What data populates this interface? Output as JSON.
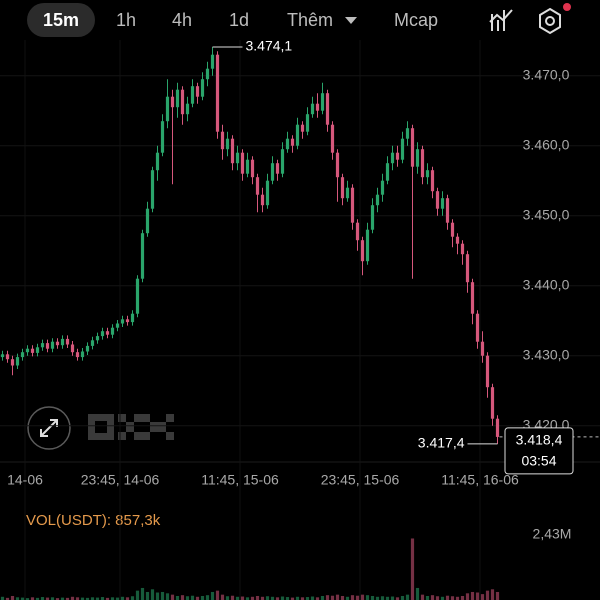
{
  "header": {
    "tabs": [
      "15m",
      "1h",
      "4h",
      "1d",
      "Thêm",
      "Mcap"
    ]
  },
  "chart_data": {
    "type": "candlestick",
    "up_color": "#2aa56b",
    "down_color": "#d6587c",
    "ylim": [
      3414.9,
      3475.1
    ],
    "yticks": [
      {
        "value": 3470,
        "label": "3.470,0"
      },
      {
        "value": 3460,
        "label": "3.460,0"
      },
      {
        "value": 3450,
        "label": "3.450,0"
      },
      {
        "value": 3440,
        "label": "3.440,0"
      },
      {
        "value": 3430,
        "label": "3.430,0"
      },
      {
        "value": 3420,
        "label": "3.420,0"
      }
    ],
    "xlim": [
      -0.5,
      119.5
    ],
    "xticks": [
      {
        "value": 4.5,
        "label": "14-06"
      },
      {
        "value": 23.5,
        "label": "23:45, 14-06"
      },
      {
        "value": 47.5,
        "label": "11:45, 15-06"
      },
      {
        "value": 71.5,
        "label": "23:45, 15-06"
      },
      {
        "value": 95.5,
        "label": "11:45, 16-06"
      }
    ],
    "open": [
      3429.8,
      3430.2,
      3429.5,
      3428.6,
      3429.8,
      3430.5,
      3431.0,
      3430.4,
      3431.2,
      3431.8,
      3431.0,
      3432.0,
      3431.5,
      3432.4,
      3431.6,
      3430.5,
      3429.8,
      3430.6,
      3431.4,
      3432.2,
      3432.8,
      3433.5,
      3433.0,
      3434.0,
      3434.6,
      3435.2,
      3434.8,
      3436.0,
      3441.0,
      3447.5,
      3451.0,
      3456.5,
      3459.0,
      3463.5,
      3467.0,
      3465.5,
      3468.0,
      3464.5,
      3466.0,
      3468.5,
      3467.0,
      3469.5,
      3471.0,
      3473.0,
      3462.0,
      3459.5,
      3461.0,
      3457.5,
      3459.0,
      3456.0,
      3458.0,
      3455.5,
      3453.0,
      3451.5,
      3455.0,
      3457.5,
      3456.0,
      3459.5,
      3461.0,
      3460.0,
      3463.0,
      3462.0,
      3464.5,
      3466.0,
      3465.0,
      3467.5,
      3463.0,
      3459.0,
      3455.5,
      3452.5,
      3454.0,
      3449.0,
      3446.5,
      3443.5,
      3448.0,
      3451.5,
      3453.0,
      3455.0,
      3457.5,
      3459.0,
      3458.0,
      3461.0,
      3462.5,
      3457.0,
      3459.5,
      3455.5,
      3456.5,
      3453.5,
      3451.0,
      3452.5,
      3449.0,
      3447.0,
      3446.0,
      3444.5,
      3440.5,
      3436.0,
      3432.0,
      3430.0,
      3425.5,
      3421.0
    ],
    "high": [
      3430.7,
      3430.7,
      3430.0,
      3430.3,
      3431.0,
      3431.5,
      3431.5,
      3431.7,
      3432.3,
      3432.3,
      3432.5,
      3432.5,
      3432.9,
      3432.9,
      3432.1,
      3431.0,
      3431.1,
      3431.9,
      3432.7,
      3433.3,
      3434.0,
      3434.0,
      3434.5,
      3435.1,
      3435.7,
      3435.7,
      3436.5,
      3441.5,
      3448.0,
      3452.0,
      3457.0,
      3460.0,
      3464.5,
      3469.5,
      3468.0,
      3469.0,
      3468.5,
      3467.0,
      3469.5,
      3469.0,
      3470.5,
      3472.0,
      3474.1,
      3473.5,
      3463.0,
      3462.0,
      3461.5,
      3460.0,
      3459.5,
      3459.0,
      3458.5,
      3456.0,
      3454.0,
      3456.0,
      3458.5,
      3458.0,
      3460.5,
      3462.0,
      3461.5,
      3464.0,
      3463.5,
      3465.5,
      3467.0,
      3467.5,
      3469.0,
      3468.0,
      3463.5,
      3459.5,
      3456.0,
      3455.0,
      3454.5,
      3449.5,
      3447.0,
      3449.0,
      3452.5,
      3454.0,
      3456.0,
      3458.5,
      3460.0,
      3460.0,
      3462.0,
      3463.5,
      3463.0,
      3460.5,
      3460.0,
      3457.5,
      3457.0,
      3454.0,
      3453.5,
      3453.0,
      3449.5,
      3447.5,
      3446.5,
      3445.0,
      3441.0,
      3436.5,
      3433.5,
      3430.5,
      3426.0,
      3421.5
    ],
    "low": [
      3429.3,
      3429.0,
      3427.2,
      3428.1,
      3429.3,
      3430.0,
      3429.9,
      3429.9,
      3430.7,
      3430.5,
      3430.5,
      3431.0,
      3431.0,
      3431.1,
      3430.0,
      3429.3,
      3429.3,
      3430.1,
      3430.9,
      3431.7,
      3432.3,
      3432.5,
      3432.5,
      3433.5,
      3434.1,
      3434.3,
      3434.3,
      3435.5,
      3440.5,
      3447.0,
      3450.5,
      3455.0,
      3458.5,
      3462.5,
      3454.5,
      3464.0,
      3463.0,
      3463.5,
      3465.5,
      3466.0,
      3466.5,
      3468.5,
      3470.0,
      3461.0,
      3458.0,
      3458.5,
      3456.5,
      3456.5,
      3455.0,
      3455.5,
      3454.5,
      3450.5,
      3450.5,
      3451.0,
      3454.5,
      3455.0,
      3455.5,
      3459.0,
      3459.0,
      3459.5,
      3461.0,
      3461.5,
      3464.0,
      3464.0,
      3464.5,
      3462.0,
      3458.0,
      3452.0,
      3451.5,
      3452.0,
      3448.0,
      3445.0,
      3441.5,
      3443.0,
      3447.5,
      3450.5,
      3452.0,
      3454.5,
      3456.5,
      3457.0,
      3457.5,
      3460.0,
      3441.0,
      3456.0,
      3454.5,
      3454.5,
      3452.5,
      3450.0,
      3450.0,
      3448.0,
      3445.5,
      3444.5,
      3443.0,
      3439.0,
      3434.5,
      3431.0,
      3429.0,
      3424.0,
      3420.0,
      3417.4
    ],
    "close": [
      3430.2,
      3429.5,
      3428.6,
      3429.8,
      3430.5,
      3431.0,
      3430.4,
      3431.2,
      3431.8,
      3431.0,
      3432.0,
      3431.5,
      3432.4,
      3431.6,
      3430.5,
      3429.8,
      3430.6,
      3431.4,
      3432.2,
      3432.8,
      3433.5,
      3433.0,
      3434.0,
      3434.6,
      3435.2,
      3434.8,
      3436.0,
      3441.0,
      3447.5,
      3451.0,
      3456.5,
      3459.0,
      3463.5,
      3467.0,
      3465.5,
      3468.0,
      3464.5,
      3466.0,
      3468.5,
      3467.0,
      3469.5,
      3471.0,
      3473.0,
      3462.0,
      3459.5,
      3461.0,
      3457.5,
      3459.0,
      3456.0,
      3458.0,
      3455.5,
      3453.0,
      3451.5,
      3455.0,
      3457.5,
      3456.0,
      3459.5,
      3461.0,
      3460.0,
      3463.0,
      3462.0,
      3464.5,
      3466.0,
      3465.0,
      3467.5,
      3463.0,
      3459.0,
      3455.5,
      3452.5,
      3454.0,
      3449.0,
      3446.5,
      3443.5,
      3448.0,
      3451.5,
      3453.0,
      3455.0,
      3457.5,
      3459.0,
      3458.0,
      3461.0,
      3462.5,
      3457.0,
      3459.5,
      3455.5,
      3456.5,
      3453.5,
      3451.0,
      3452.5,
      3449.0,
      3447.0,
      3446.0,
      3444.5,
      3440.5,
      3436.0,
      3432.0,
      3430.0,
      3425.5,
      3421.0,
      3418.4
    ],
    "max_annotation": {
      "value": 3474.1,
      "label": "3.474,1"
    },
    "min_annotation": {
      "value": 3417.4,
      "label": "3.417,4"
    },
    "last_price": {
      "value": 3418.4,
      "label": "3.418,4"
    },
    "countdown": "03:54",
    "volume_label": "VOL(USDT): 857,3k",
    "volume": [
      0.12,
      0.08,
      0.15,
      0.1,
      0.09,
      0.07,
      0.1,
      0.08,
      0.11,
      0.09,
      0.1,
      0.07,
      0.09,
      0.08,
      0.12,
      0.1,
      0.09,
      0.08,
      0.1,
      0.09,
      0.11,
      0.08,
      0.1,
      0.09,
      0.12,
      0.1,
      0.14,
      0.35,
      0.45,
      0.3,
      0.4,
      0.28,
      0.3,
      0.25,
      0.2,
      0.15,
      0.18,
      0.14,
      0.16,
      0.12,
      0.15,
      0.18,
      0.3,
      0.35,
      0.2,
      0.14,
      0.16,
      0.12,
      0.13,
      0.1,
      0.12,
      0.15,
      0.12,
      0.14,
      0.12,
      0.1,
      0.13,
      0.11,
      0.09,
      0.12,
      0.1,
      0.11,
      0.13,
      0.1,
      0.15,
      0.18,
      0.16,
      0.2,
      0.15,
      0.12,
      0.18,
      0.16,
      0.2,
      0.18,
      0.15,
      0.12,
      0.14,
      0.12,
      0.13,
      0.1,
      0.15,
      0.2,
      2.3,
      0.45,
      0.2,
      0.15,
      0.18,
      0.14,
      0.12,
      0.16,
      0.14,
      0.12,
      0.15,
      0.25,
      0.3,
      0.28,
      0.22,
      0.35,
      0.4,
      0.3
    ],
    "y2lim": [
      0,
      2.43
    ],
    "y2ticks": [
      {
        "value": 2.43,
        "label": "2,43M"
      }
    ]
  }
}
